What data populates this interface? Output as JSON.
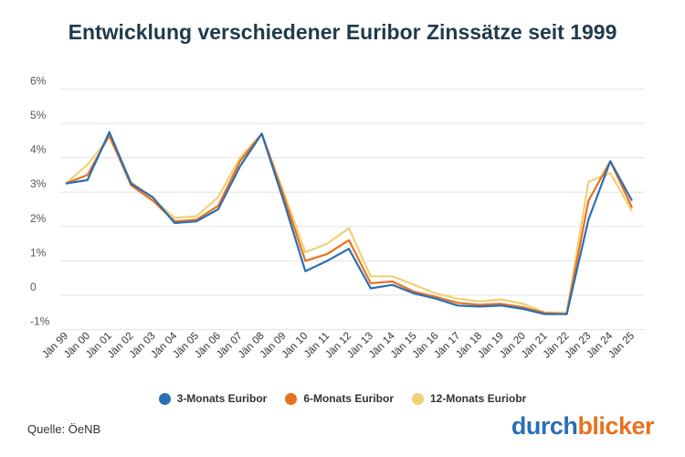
{
  "title": "Entwicklung verschiedener Euribor Zinssätze seit 1999",
  "source": "Quelle: ÖeNB",
  "logo": {
    "part1": "durch",
    "part2": "blicker"
  },
  "chart_data": {
    "type": "line",
    "title": "Entwicklung verschiedener Euribor Zinssätze seit 1999",
    "x": [
      "Jän 99",
      "Jän 00",
      "Jän 01",
      "Jän 02",
      "Jän 03",
      "Jän 04",
      "Jän 05",
      "Jän 06",
      "Jän 07",
      "Jän 08",
      "Jän 09",
      "Jän 10",
      "Jän 11",
      "Jän 12",
      "Jän 13",
      "Jän 14",
      "Jän 15",
      "Jän 16",
      "Jän 17",
      "Jän 18",
      "Jän 19",
      "Jän 20",
      "Jän 21",
      "Jän 22",
      "Jän 23",
      "Jän 24",
      "Jän 25"
    ],
    "y_ticks": [
      "-1%",
      "0",
      "1%",
      "2%",
      "3%",
      "4%",
      "5%",
      "6%"
    ],
    "y_tick_values": [
      -1,
      0,
      1,
      2,
      3,
      4,
      5,
      6
    ],
    "ylim": [
      -1,
      6
    ],
    "grid": true,
    "legend_position": "bottom",
    "series": [
      {
        "name": "3-Monats Euribor",
        "color": "#2a6fb5",
        "values": [
          3.25,
          3.35,
          4.75,
          3.25,
          2.85,
          2.1,
          2.15,
          2.5,
          3.75,
          4.7,
          2.75,
          0.7,
          1.0,
          1.35,
          0.2,
          0.3,
          0.05,
          -0.1,
          -0.3,
          -0.33,
          -0.3,
          -0.4,
          -0.55,
          -0.55,
          2.2,
          3.9,
          2.75
        ]
      },
      {
        "name": "6-Monats Euribor",
        "color": "#e8711e",
        "values": [
          3.25,
          3.5,
          4.65,
          3.2,
          2.75,
          2.15,
          2.2,
          2.6,
          3.9,
          4.7,
          2.9,
          1.0,
          1.2,
          1.6,
          0.35,
          0.4,
          0.1,
          -0.05,
          -0.22,
          -0.28,
          -0.25,
          -0.35,
          -0.52,
          -0.55,
          2.75,
          3.9,
          2.55
        ]
      },
      {
        "name": "12-Monats Euriobr",
        "color": "#f0d075",
        "values": [
          3.25,
          3.8,
          4.6,
          3.3,
          2.8,
          2.25,
          2.3,
          2.85,
          4.0,
          4.7,
          3.0,
          1.25,
          1.5,
          1.95,
          0.55,
          0.55,
          0.3,
          0.05,
          -0.1,
          -0.18,
          -0.12,
          -0.25,
          -0.5,
          -0.5,
          3.3,
          3.55,
          2.45
        ]
      }
    ]
  }
}
